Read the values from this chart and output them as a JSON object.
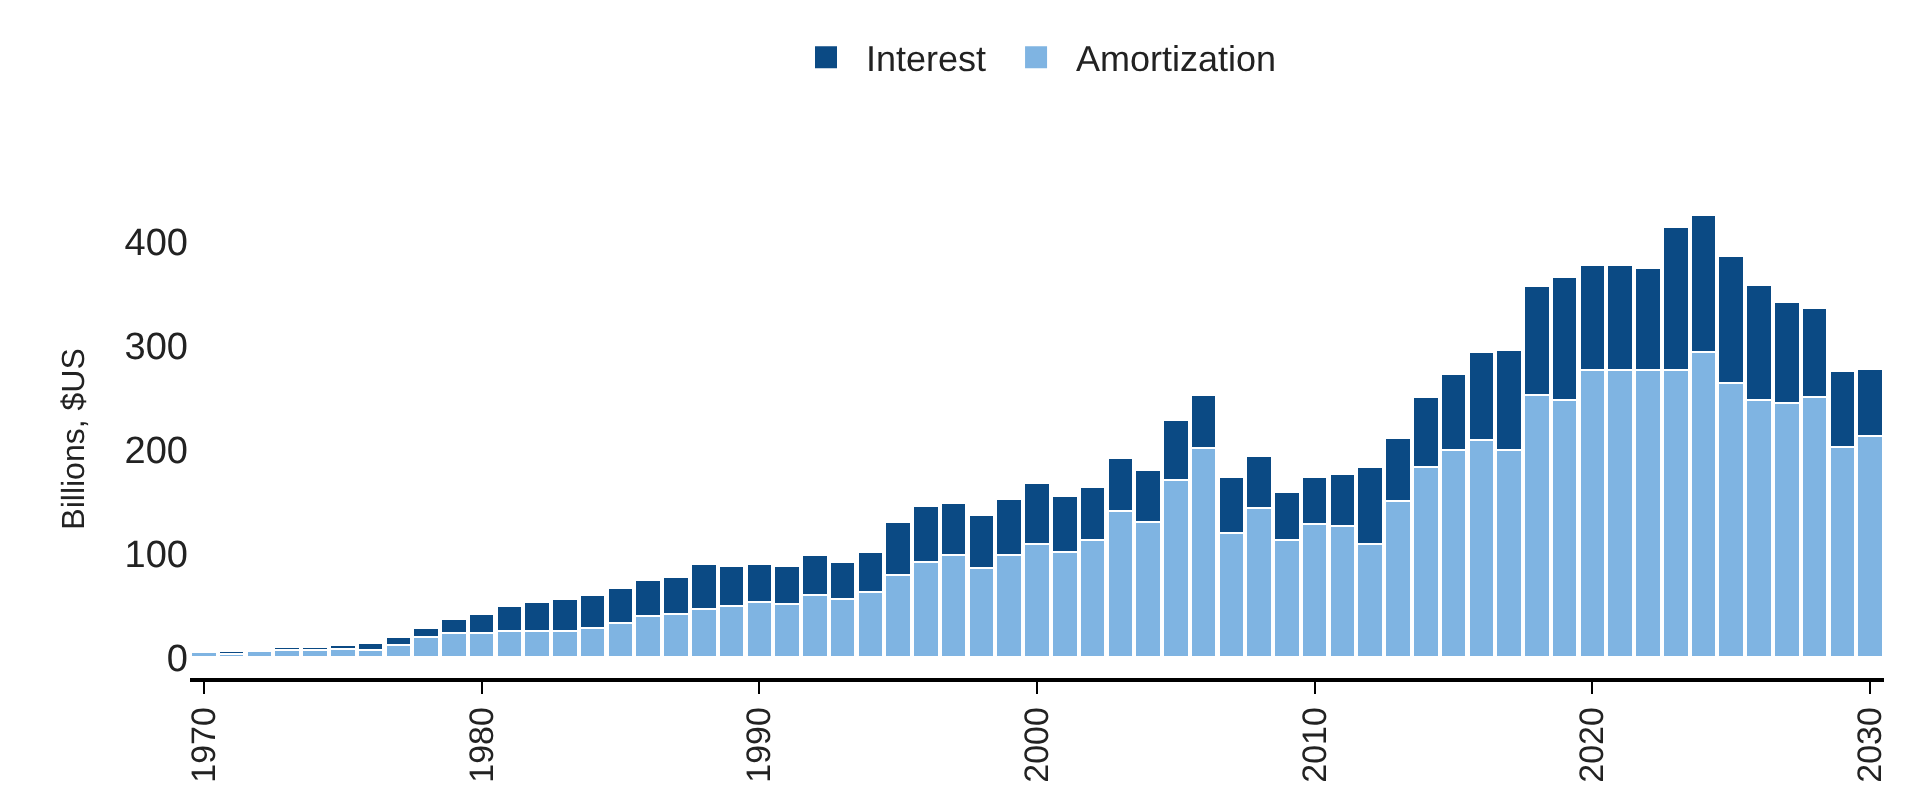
{
  "chart_data": {
    "type": "bar",
    "stacked": true,
    "ylabel": "Billions, $US",
    "x": [
      1970,
      1971,
      1972,
      1973,
      1974,
      1975,
      1976,
      1977,
      1978,
      1979,
      1980,
      1981,
      1982,
      1983,
      1984,
      1985,
      1986,
      1987,
      1988,
      1989,
      1990,
      1991,
      1992,
      1993,
      1994,
      1995,
      1996,
      1997,
      1998,
      1999,
      2000,
      2001,
      2002,
      2003,
      2004,
      2005,
      2006,
      2007,
      2008,
      2009,
      2010,
      2011,
      2012,
      2013,
      2014,
      2015,
      2016,
      2017,
      2018,
      2019,
      2020,
      2021,
      2022,
      2023,
      2024,
      2025,
      2026,
      2027,
      2028,
      2029,
      2030
    ],
    "series": [
      {
        "name": "Amortization",
        "color": "#7fb4e2",
        "values": [
          5,
          3,
          6,
          7,
          7,
          8,
          7,
          12,
          19,
          23,
          23,
          25,
          25,
          25,
          28,
          33,
          40,
          42,
          46,
          49,
          53,
          51,
          60,
          56,
          63,
          79,
          92,
          98,
          86,
          98,
          109,
          101,
          113,
          141,
          130,
          171,
          201,
          120,
          144,
          113,
          128,
          126,
          109,
          150,
          183,
          199,
          209,
          199,
          252,
          248,
          276,
          276,
          276,
          276,
          294,
          264,
          248,
          245,
          250,
          202,
          213
        ]
      },
      {
        "name": "Interest",
        "color": "#0b4a84",
        "values": [
          null,
          3,
          2,
          3,
          3,
          4,
          7,
          7,
          9,
          14,
          19,
          24,
          28,
          31,
          32,
          34,
          34,
          35,
          44,
          39,
          37,
          37,
          38,
          36,
          38,
          51,
          54,
          50,
          51,
          54,
          59,
          54,
          51,
          51,
          50,
          57,
          51,
          53,
          50,
          46,
          45,
          50,
          74,
          61,
          67,
          74,
          85,
          97,
          105,
          118,
          101,
          101,
          99,
          138,
          132,
          122,
          110,
          97,
          86,
          73,
          64
        ]
      }
    ],
    "xlim": [
      1969.5,
      2030.5
    ],
    "xticks": [
      1970,
      1980,
      1990,
      2000,
      2010,
      2020,
      2030
    ],
    "ylim": [
      -20,
      440
    ],
    "yticks": [
      0,
      100,
      200,
      300,
      400
    ],
    "legend": "top"
  }
}
